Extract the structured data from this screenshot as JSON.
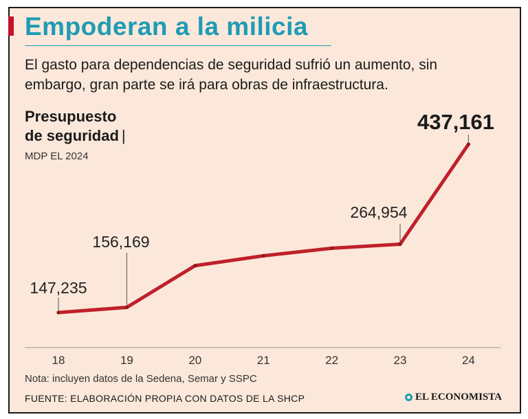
{
  "header": {
    "title": "Empoderan a la milicia",
    "subtitle": "El gasto para dependencias de seguridad sufrió un aumento, sin embargo, gran parte se irá para obras de infraestructura."
  },
  "colors": {
    "accent": "#c8102e",
    "title": "#1f9bb5",
    "line": "#c0202a",
    "background": "#fbe8da"
  },
  "chart_data": {
    "type": "line",
    "title": "Presupuesto de seguridad",
    "title_line1": "Presupuesto",
    "title_line2": "de seguridad",
    "title_separator": "|",
    "unit": "MDP EL 2024",
    "categories": [
      "18",
      "19",
      "20",
      "21",
      "22",
      "23",
      "24"
    ],
    "values": [
      147235,
      156169,
      228000,
      245000,
      258000,
      264954,
      437161
    ],
    "labels": [
      {
        "index": 0,
        "text": "147,235",
        "emphasis": false
      },
      {
        "index": 1,
        "text": "156,169",
        "emphasis": false
      },
      {
        "index": 5,
        "text": "264,954",
        "emphasis": false
      },
      {
        "index": 6,
        "text": "437,161",
        "emphasis": true
      }
    ],
    "xlabel": "",
    "ylabel": "",
    "ylim": [
      0,
      470000
    ],
    "grid": false,
    "legend": "none"
  },
  "footer": {
    "note": "Nota: incluyen datos de la Sedena, Semar y SSPC",
    "source": "FUENTE: ELABORACIÓN PROPIA CON DATOS DE LA SHCP",
    "brand": "EL ECONOMISTA"
  }
}
